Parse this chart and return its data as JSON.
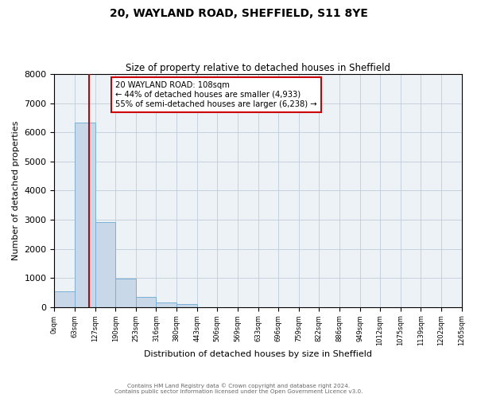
{
  "title_line1": "20, WAYLAND ROAD, SHEFFIELD, S11 8YE",
  "title_line2": "Size of property relative to detached houses in Sheffield",
  "xlabel": "Distribution of detached houses by size in Sheffield",
  "ylabel": "Number of detached properties",
  "bin_edges": [
    0,
    63,
    127,
    190,
    253,
    316,
    380,
    443,
    506,
    569,
    633,
    696,
    759,
    822,
    886,
    949,
    1012,
    1075,
    1139,
    1202,
    1265
  ],
  "bin_labels": [
    "0sqm",
    "63sqm",
    "127sqm",
    "190sqm",
    "253sqm",
    "316sqm",
    "380sqm",
    "443sqm",
    "506sqm",
    "569sqm",
    "633sqm",
    "696sqm",
    "759sqm",
    "822sqm",
    "886sqm",
    "949sqm",
    "1012sqm",
    "1075sqm",
    "1139sqm",
    "1202sqm",
    "1265sqm"
  ],
  "bar_heights": [
    550,
    6350,
    2920,
    970,
    350,
    150,
    90,
    0,
    0,
    0,
    0,
    0,
    0,
    0,
    0,
    0,
    0,
    0,
    0,
    0
  ],
  "bar_color": "#c8d8e8",
  "bar_edgecolor": "#7aafd4",
  "property_size": 108,
  "vline_color": "#cc0000",
  "annotation_line1": "20 WAYLAND ROAD: 108sqm",
  "annotation_line2": "← 44% of detached houses are smaller (4,933)",
  "annotation_line3": "55% of semi-detached houses are larger (6,238) →",
  "annotation_box_edgecolor": "#cc0000",
  "ylim": [
    0,
    8000
  ],
  "yticks": [
    0,
    1000,
    2000,
    3000,
    4000,
    5000,
    6000,
    7000,
    8000
  ],
  "footer_line1": "Contains HM Land Registry data © Crown copyright and database right 2024.",
  "footer_line2": "Contains public sector information licensed under the Open Government Licence v3.0.",
  "background_color": "#edf2f7",
  "grid_color": "#c0ccd8"
}
